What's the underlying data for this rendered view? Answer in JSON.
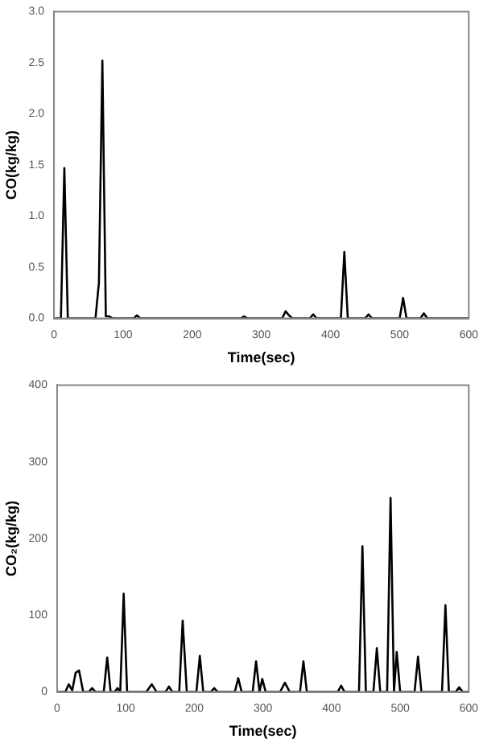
{
  "chart_data": [
    {
      "type": "line",
      "xlabel": "Time(sec)",
      "ylabel": "CO(kg/kg)",
      "xlim": [
        0,
        600
      ],
      "xticks": [
        0,
        100,
        200,
        300,
        400,
        500,
        600
      ],
      "ylim": [
        0,
        3
      ],
      "yticks": [
        {
          "value": 0,
          "label": "0.0"
        },
        {
          "value": 0.5,
          "label": "0.5"
        },
        {
          "value": 1,
          "label": "1.0"
        },
        {
          "value": 1.5,
          "label": "1.5"
        },
        {
          "value": 2,
          "label": "2.0"
        },
        {
          "value": 2.5,
          "label": "2.5"
        },
        {
          "value": 3,
          "label": "3.0"
        }
      ],
      "grid": false,
      "legend": false,
      "marker": "none",
      "line_style": "solid",
      "series": [
        {
          "color": "#000000",
          "x": [
            0,
            10,
            15,
            20,
            50,
            60,
            65,
            70,
            75,
            80,
            85,
            115,
            120,
            125,
            270,
            275,
            280,
            330,
            335,
            340,
            345,
            370,
            375,
            380,
            415,
            420,
            425,
            450,
            455,
            460,
            500,
            505,
            510,
            530,
            535,
            540,
            600
          ],
          "values": [
            0,
            0,
            1.47,
            0,
            0,
            0,
            0.35,
            2.52,
            0.02,
            0.02,
            0,
            0,
            0.03,
            0,
            0,
            0.02,
            0,
            0,
            0.07,
            0.03,
            0,
            0,
            0.04,
            0,
            0,
            0.65,
            0,
            0,
            0.04,
            0,
            0,
            0.2,
            0,
            0,
            0.05,
            0,
            0
          ]
        }
      ]
    },
    {
      "type": "line",
      "xlabel": "Time(sec)",
      "ylabel": "CO₂(kg/kg)",
      "xlim": [
        0,
        600
      ],
      "xticks": [
        0,
        100,
        200,
        300,
        400,
        500,
        600
      ],
      "ylim": [
        0,
        400
      ],
      "yticks": [
        0,
        100,
        200,
        300,
        400
      ],
      "grid": false,
      "legend": false,
      "marker": "none",
      "line_style": "solid",
      "series": [
        {
          "color": "#000000",
          "x": [
            0,
            12,
            17,
            22,
            27,
            32,
            38,
            46,
            51,
            56,
            68,
            73,
            78,
            84,
            88,
            92,
            97,
            102,
            130,
            138,
            145,
            158,
            163,
            168,
            178,
            183,
            189,
            203,
            208,
            213,
            224,
            229,
            234,
            259,
            264,
            269,
            285,
            290,
            295,
            299,
            304,
            325,
            332,
            339,
            354,
            359,
            364,
            409,
            414,
            419,
            440,
            445,
            450,
            461,
            466,
            471,
            481,
            486,
            491,
            495,
            500,
            521,
            526,
            531,
            561,
            566,
            571,
            581,
            586,
            591,
            600
          ],
          "values": [
            0,
            0,
            10,
            2,
            25,
            28,
            0,
            0,
            5,
            0,
            0,
            45,
            0,
            0,
            5,
            0,
            128,
            0,
            0,
            10,
            0,
            0,
            7,
            0,
            0,
            93,
            0,
            0,
            47,
            0,
            0,
            5,
            0,
            0,
            18,
            0,
            0,
            40,
            0,
            17,
            0,
            0,
            12,
            0,
            0,
            40,
            0,
            0,
            8,
            0,
            0,
            190,
            0,
            0,
            57,
            0,
            0,
            253,
            0,
            52,
            0,
            0,
            46,
            0,
            0,
            113,
            0,
            0,
            6,
            0,
            0
          ]
        }
      ]
    }
  ]
}
